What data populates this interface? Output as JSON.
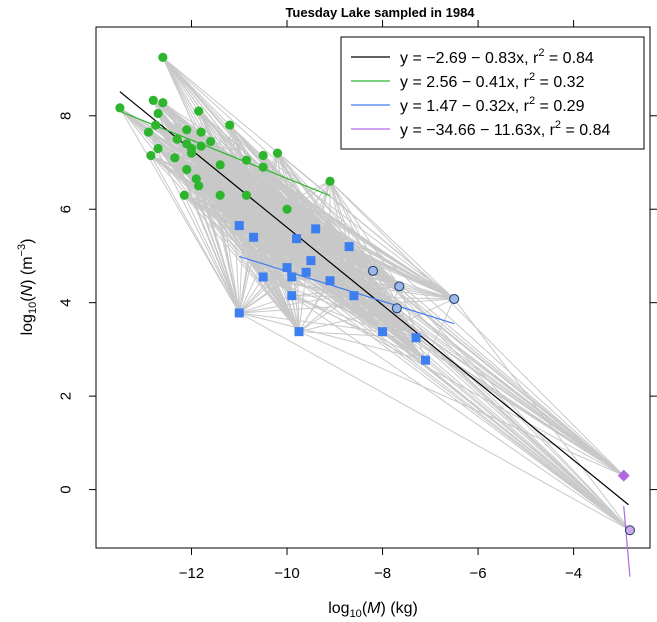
{
  "chart_data": {
    "type": "scatter",
    "title": "Tuesday Lake sampled in 1984",
    "xlabel": {
      "prefix": "log",
      "sub": "10",
      "open": "(",
      "var": "M",
      "close": ") (kg)"
    },
    "ylabel": {
      "prefix": "log",
      "sub": "10",
      "open": "(",
      "var": "N",
      "close": ") (m",
      "sup": "−3",
      "end": ")"
    },
    "xlim": [
      -14,
      -2.4
    ],
    "ylim": [
      -1.25,
      9.9
    ],
    "x_ticks": [
      -12,
      -10,
      -8,
      -6,
      -4
    ],
    "x_tick_labels": [
      "−12",
      "−10",
      "−8",
      "−6",
      "−4"
    ],
    "y_ticks": [
      0,
      2,
      4,
      6,
      8
    ],
    "y_tick_labels": [
      "0",
      "2",
      "4",
      "6",
      "8"
    ],
    "grid": false,
    "legend_position": "top-right",
    "colors": {
      "all": "#000000",
      "phytoplankton": "#2db52d",
      "zooplankton": "#3d7ef0",
      "zooplankton_circle_fill": "#9ab8e8",
      "fish": "#b06ae0",
      "fish_circle_fill": "#cfa8ec",
      "links": "#c8c8c8"
    },
    "legend": [
      {
        "text": "y = −2.69 − 0.83x, r",
        "sup": "2",
        "tail": " = 0.84",
        "color_key": "all"
      },
      {
        "text": "y = 2.56 − 0.41x, r",
        "sup": "2",
        "tail": " = 0.32",
        "color_key": "phytoplankton"
      },
      {
        "text": "y = 1.47 − 0.32x, r",
        "sup": "2",
        "tail": " = 0.29",
        "color_key": "zooplankton"
      },
      {
        "text": "y = −34.66 − 11.63x, r",
        "sup": "2",
        "tail": " = 0.84",
        "color_key": "fish"
      }
    ],
    "regression_lines": [
      {
        "group": "all",
        "intercept": -2.69,
        "slope": -0.83,
        "x_range": [
          -13.5,
          -2.85
        ]
      },
      {
        "group": "phytoplankton",
        "intercept": 2.56,
        "slope": -0.41,
        "x_range": [
          -13.5,
          -9.1
        ]
      },
      {
        "group": "zooplankton",
        "intercept": 1.47,
        "slope": -0.32,
        "x_range": [
          -11,
          -6.5
        ]
      },
      {
        "group": "fish",
        "intercept": -34.66,
        "slope": -11.63,
        "x_range": [
          -2.95,
          -2.82
        ]
      }
    ],
    "series": [
      {
        "group": "phytoplankton",
        "marker": "circle",
        "points": [
          [
            -12.6,
            9.25
          ],
          [
            -13.5,
            8.17
          ],
          [
            -12.8,
            8.33
          ],
          [
            -12.6,
            8.28
          ],
          [
            -12.7,
            8.05
          ],
          [
            -12.9,
            7.65
          ],
          [
            -12.75,
            7.8
          ],
          [
            -12.3,
            7.5
          ],
          [
            -12.1,
            7.4
          ],
          [
            -12.1,
            7.7
          ],
          [
            -11.85,
            8.1
          ],
          [
            -11.8,
            7.65
          ],
          [
            -11.6,
            7.45
          ],
          [
            -11.2,
            7.8
          ],
          [
            -12.85,
            7.15
          ],
          [
            -12.7,
            7.3
          ],
          [
            -12.35,
            7.1
          ],
          [
            -12.0,
            7.2
          ],
          [
            -12.0,
            7.3
          ],
          [
            -11.8,
            7.35
          ],
          [
            -12.1,
            6.85
          ],
          [
            -11.9,
            6.65
          ],
          [
            -12.15,
            6.3
          ],
          [
            -11.85,
            6.5
          ],
          [
            -11.4,
            6.95
          ],
          [
            -11.4,
            6.3
          ],
          [
            -10.85,
            7.05
          ],
          [
            -10.5,
            7.15
          ],
          [
            -10.5,
            6.9
          ],
          [
            -10.2,
            7.2
          ],
          [
            -10.85,
            6.3
          ],
          [
            -10.0,
            6.0
          ],
          [
            -9.1,
            6.6
          ]
        ]
      },
      {
        "group": "zooplankton",
        "marker": "square",
        "points": [
          [
            -11.0,
            5.65
          ],
          [
            -10.7,
            5.4
          ],
          [
            -9.8,
            5.37
          ],
          [
            -9.4,
            5.58
          ],
          [
            -8.7,
            5.2
          ],
          [
            -10.0,
            4.75
          ],
          [
            -10.5,
            4.55
          ],
          [
            -9.9,
            4.55
          ],
          [
            -9.6,
            4.65
          ],
          [
            -9.5,
            4.9
          ],
          [
            -9.1,
            4.47
          ],
          [
            -9.9,
            4.15
          ],
          [
            -8.6,
            4.15
          ],
          [
            -11.0,
            3.78
          ],
          [
            -9.75,
            3.38
          ],
          [
            -8.0,
            3.38
          ],
          [
            -7.3,
            3.25
          ],
          [
            -7.1,
            2.77
          ]
        ]
      },
      {
        "group": "zooplankton",
        "marker": "circle-outline",
        "points": [
          [
            -8.2,
            4.68
          ],
          [
            -7.65,
            4.35
          ],
          [
            -7.7,
            3.88
          ],
          [
            -6.5,
            4.08
          ]
        ]
      },
      {
        "group": "fish",
        "marker": "diamond",
        "points": [
          [
            -2.95,
            0.3
          ]
        ]
      },
      {
        "group": "fish",
        "marker": "circle-outline",
        "points": [
          [
            -2.82,
            -0.87
          ]
        ]
      }
    ]
  }
}
